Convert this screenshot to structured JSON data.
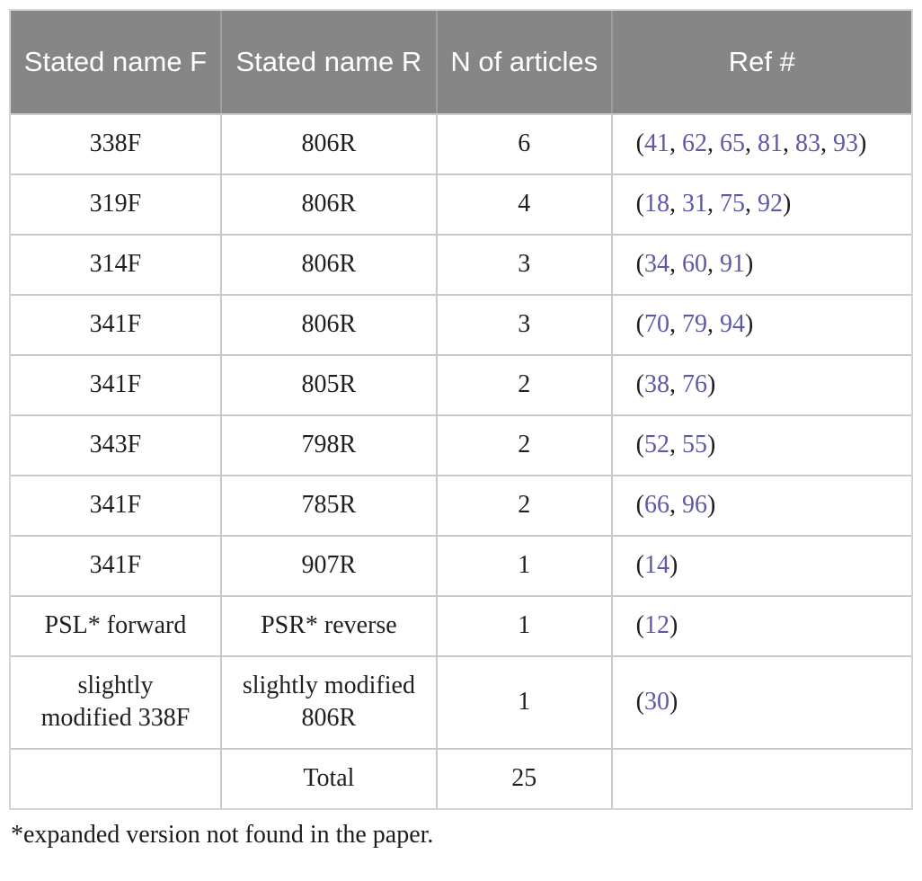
{
  "table": {
    "columns": [
      "Stated name F",
      "Stated name R",
      "N of articles",
      "Ref #"
    ],
    "rows": [
      {
        "stated_name_f": "338F",
        "stated_name_r": "806R",
        "n_of_articles": "6",
        "refs": [
          "41",
          "62",
          "65",
          "81",
          "83",
          "93"
        ]
      },
      {
        "stated_name_f": "319F",
        "stated_name_r": "806R",
        "n_of_articles": "4",
        "refs": [
          "18",
          "31",
          "75",
          "92"
        ]
      },
      {
        "stated_name_f": "314F",
        "stated_name_r": "806R",
        "n_of_articles": "3",
        "refs": [
          "34",
          "60",
          "91"
        ]
      },
      {
        "stated_name_f": "341F",
        "stated_name_r": "806R",
        "n_of_articles": "3",
        "refs": [
          "70",
          "79",
          "94"
        ]
      },
      {
        "stated_name_f": "341F",
        "stated_name_r": "805R",
        "n_of_articles": "2",
        "refs": [
          "38",
          "76"
        ]
      },
      {
        "stated_name_f": "343F",
        "stated_name_r": "798R",
        "n_of_articles": "2",
        "refs": [
          "52",
          "55"
        ]
      },
      {
        "stated_name_f": "341F",
        "stated_name_r": "785R",
        "n_of_articles": "2",
        "refs": [
          "66",
          "96"
        ]
      },
      {
        "stated_name_f": "341F",
        "stated_name_r": "907R",
        "n_of_articles": "1",
        "refs": [
          "14"
        ]
      },
      {
        "stated_name_f": "PSL* forward",
        "stated_name_r": "PSR* reverse",
        "n_of_articles": "1",
        "refs": [
          "12"
        ]
      },
      {
        "stated_name_f": "slightly modified 338F",
        "stated_name_r": "slightly modified 806R",
        "n_of_articles": "1",
        "refs": [
          "30"
        ]
      },
      {
        "stated_name_f": "",
        "stated_name_r": "Total",
        "n_of_articles": "25",
        "refs": []
      }
    ],
    "total_label": "Total",
    "total_value": "25"
  },
  "colors": {
    "header_bg": "#868686",
    "ref_link": "#5c59a6"
  },
  "footnote": "*expanded version not found in the paper."
}
